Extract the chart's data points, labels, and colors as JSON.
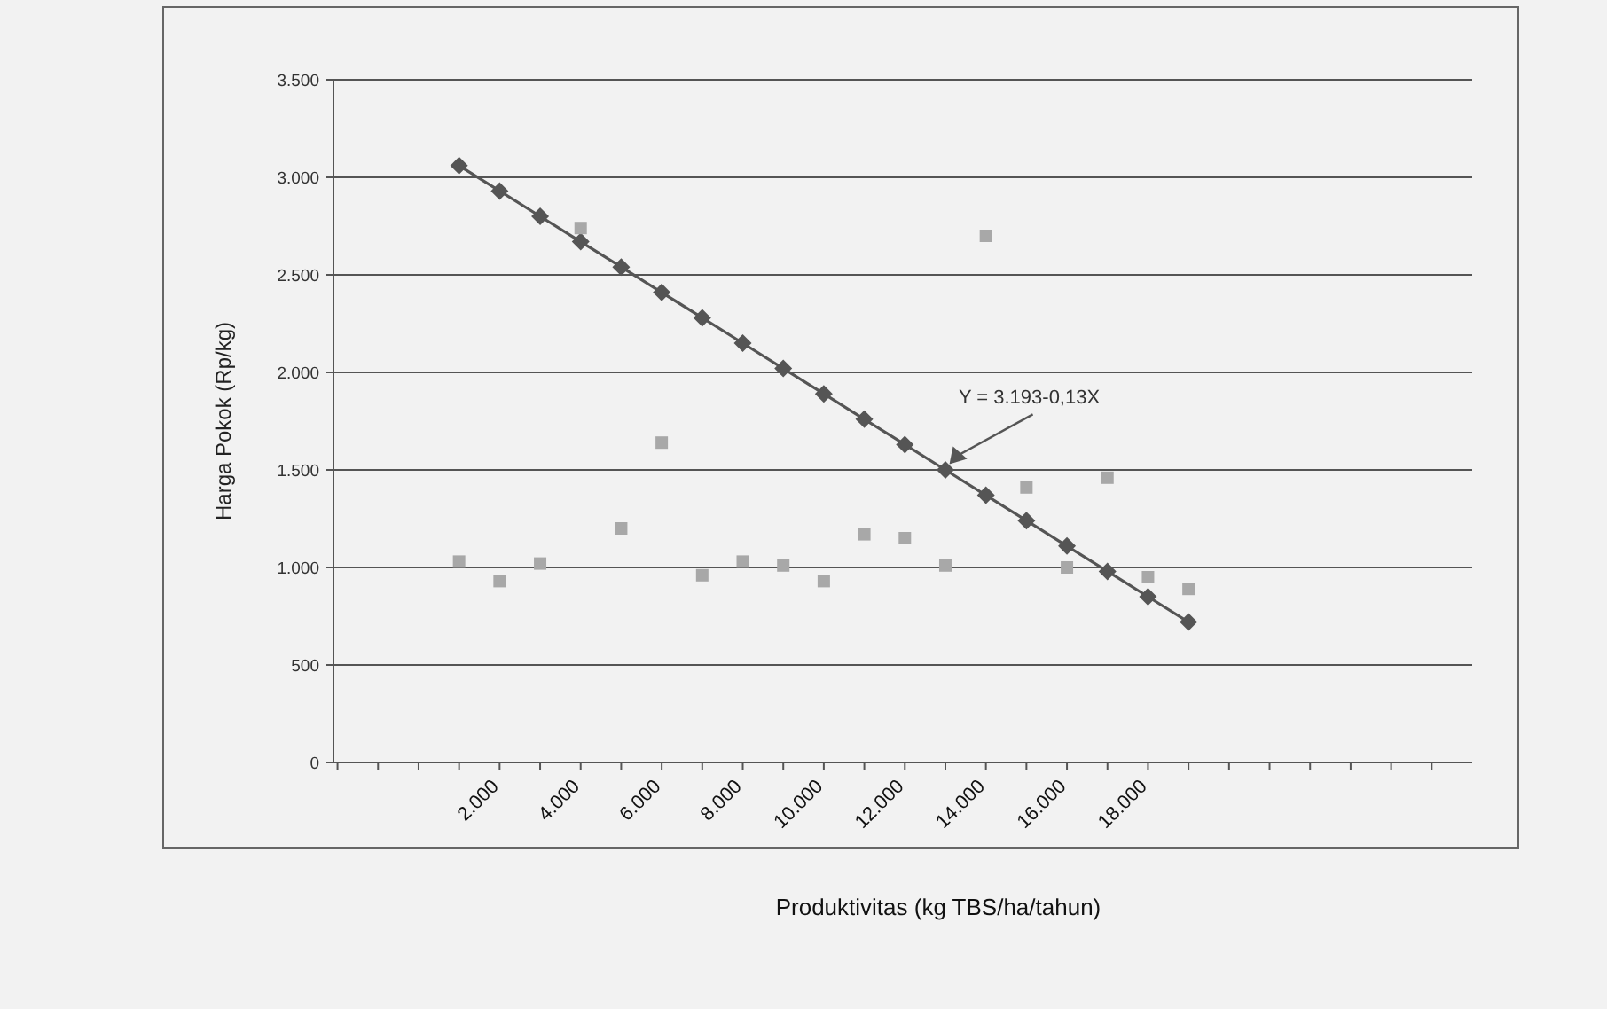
{
  "chart_data": {
    "type": "line",
    "xlabel": "Produktivitas (kg TBS/ha/tahun)",
    "ylabel": "Harga Pokok (Rp/kg)",
    "x": [
      1000,
      2000,
      3000,
      4000,
      5000,
      6000,
      7000,
      8000,
      9000,
      10000,
      11000,
      12000,
      13000,
      14000,
      15000,
      16000,
      17000,
      18000,
      19000
    ],
    "series": [
      {
        "color": "#555555",
        "marker": "diamond",
        "values": [
          3060,
          2930,
          2800,
          2670,
          2540,
          2410,
          2280,
          2150,
          2020,
          1890,
          1760,
          1630,
          1500,
          1370,
          1240,
          1110,
          980,
          850,
          720
        ]
      },
      {
        "type": "scatter",
        "color": "#a8a8a8",
        "marker": "square",
        "values": [
          1030,
          930,
          1020,
          2740,
          1200,
          1640,
          960,
          1030,
          1010,
          930,
          1170,
          1150,
          1010,
          2700,
          1410,
          1000,
          1460,
          950,
          890
        ]
      }
    ],
    "annotations": [
      {
        "text": "Y = 3.193-0,13X",
        "x": 13100,
        "y": 1530
      }
    ],
    "xlim": [
      -2100,
      26000
    ],
    "xticks": [
      {
        "value": -2000,
        "label": null
      },
      {
        "value": -1000,
        "label": null
      },
      {
        "value": 0,
        "label": null
      },
      {
        "value": 1000,
        "label": null
      },
      {
        "value": 2000,
        "label": "2.000"
      },
      {
        "value": 3000,
        "label": null
      },
      {
        "value": 4000,
        "label": "4.000"
      },
      {
        "value": 5000,
        "label": null
      },
      {
        "value": 6000,
        "label": "6.000"
      },
      {
        "value": 7000,
        "label": null
      },
      {
        "value": 8000,
        "label": "8.000"
      },
      {
        "value": 9000,
        "label": null
      },
      {
        "value": 10000,
        "label": "10.000"
      },
      {
        "value": 11000,
        "label": null
      },
      {
        "value": 12000,
        "label": "12.000"
      },
      {
        "value": 13000,
        "label": null
      },
      {
        "value": 14000,
        "label": "14.000"
      },
      {
        "value": 15000,
        "label": null
      },
      {
        "value": 16000,
        "label": "16.000"
      },
      {
        "value": 17000,
        "label": null
      },
      {
        "value": 18000,
        "label": "18.000"
      },
      {
        "value": 19000,
        "label": null
      },
      {
        "value": 20000,
        "label": null
      },
      {
        "value": 21000,
        "label": null
      },
      {
        "value": 22000,
        "label": null
      },
      {
        "value": 23000,
        "label": null
      },
      {
        "value": 24000,
        "label": null
      },
      {
        "value": 25000,
        "label": null
      }
    ],
    "ylim": [
      0,
      3500
    ],
    "yticks": [
      0,
      500,
      {
        "value": 1000,
        "label": "1.000"
      },
      {
        "value": 1500,
        "label": "1.500"
      },
      {
        "value": 2000,
        "label": "2.000"
      },
      {
        "value": 2500,
        "label": "2.500"
      },
      {
        "value": 3000,
        "label": "3.000"
      },
      {
        "value": 3500,
        "label": "3.500"
      }
    ],
    "grid": "y"
  }
}
